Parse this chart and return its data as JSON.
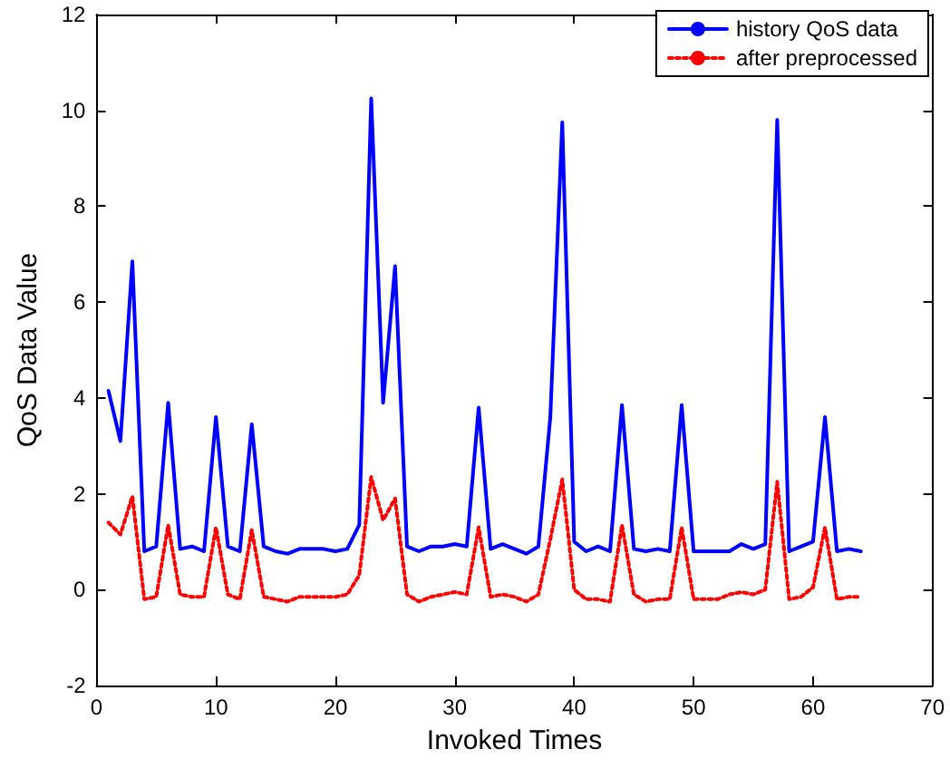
{
  "chart_data": {
    "type": "line",
    "xlabel": "Invoked Times",
    "ylabel": "QoS Data Value",
    "x": [
      1,
      2,
      3,
      4,
      5,
      6,
      7,
      8,
      9,
      10,
      11,
      12,
      13,
      14,
      15,
      16,
      17,
      18,
      19,
      20,
      21,
      22,
      23,
      24,
      25,
      26,
      27,
      28,
      29,
      30,
      31,
      32,
      33,
      34,
      35,
      36,
      37,
      38,
      39,
      40,
      41,
      42,
      43,
      44,
      45,
      46,
      47,
      48,
      49,
      50,
      51,
      52,
      53,
      54,
      55,
      56,
      57,
      58,
      59,
      60,
      61,
      62,
      63,
      64
    ],
    "series": [
      {
        "name": "history QoS data",
        "color": "#0000ff",
        "line_style": "solid",
        "values": [
          4.15,
          3.1,
          6.85,
          0.8,
          0.9,
          3.9,
          0.85,
          0.9,
          0.8,
          3.6,
          0.9,
          0.8,
          3.45,
          0.9,
          0.8,
          0.75,
          0.85,
          0.85,
          0.85,
          0.8,
          0.85,
          1.35,
          10.25,
          3.9,
          6.75,
          0.9,
          0.8,
          0.9,
          0.9,
          0.95,
          0.9,
          3.8,
          0.85,
          0.95,
          0.85,
          0.75,
          0.9,
          3.6,
          9.75,
          1.0,
          0.8,
          0.9,
          0.8,
          3.85,
          0.85,
          0.8,
          0.85,
          0.8,
          3.85,
          0.8,
          0.8,
          0.8,
          0.8,
          0.95,
          0.85,
          0.95,
          9.8,
          0.8,
          0.9,
          1.0,
          3.6,
          0.8,
          0.85,
          0.8
        ]
      },
      {
        "name": "after preprocessed",
        "color": "#ff0000",
        "line_style": "dotted",
        "values": [
          1.4,
          1.15,
          1.95,
          -0.2,
          -0.15,
          1.35,
          -0.1,
          -0.15,
          -0.15,
          1.3,
          -0.1,
          -0.2,
          1.25,
          -0.15,
          -0.2,
          -0.25,
          -0.15,
          -0.15,
          -0.15,
          -0.15,
          -0.1,
          0.3,
          2.35,
          1.45,
          1.9,
          -0.1,
          -0.25,
          -0.15,
          -0.1,
          -0.05,
          -0.1,
          1.3,
          -0.15,
          -0.1,
          -0.15,
          -0.25,
          -0.1,
          1.05,
          2.3,
          0.0,
          -0.2,
          -0.2,
          -0.25,
          1.35,
          -0.1,
          -0.25,
          -0.2,
          -0.2,
          1.3,
          -0.2,
          -0.2,
          -0.2,
          -0.1,
          -0.05,
          -0.1,
          0.0,
          2.25,
          -0.2,
          -0.15,
          0.05,
          1.3,
          -0.2,
          -0.15,
          -0.15
        ]
      }
    ],
    "xlim": [
      0,
      70
    ],
    "xticks": [
      0,
      10,
      20,
      30,
      40,
      50,
      60,
      70
    ],
    "ylim": [
      -2,
      12
    ],
    "yticks": [
      -2,
      0,
      2,
      4,
      6,
      8,
      10,
      12
    ],
    "grid": false,
    "legend": "top right",
    "marker": "none"
  }
}
